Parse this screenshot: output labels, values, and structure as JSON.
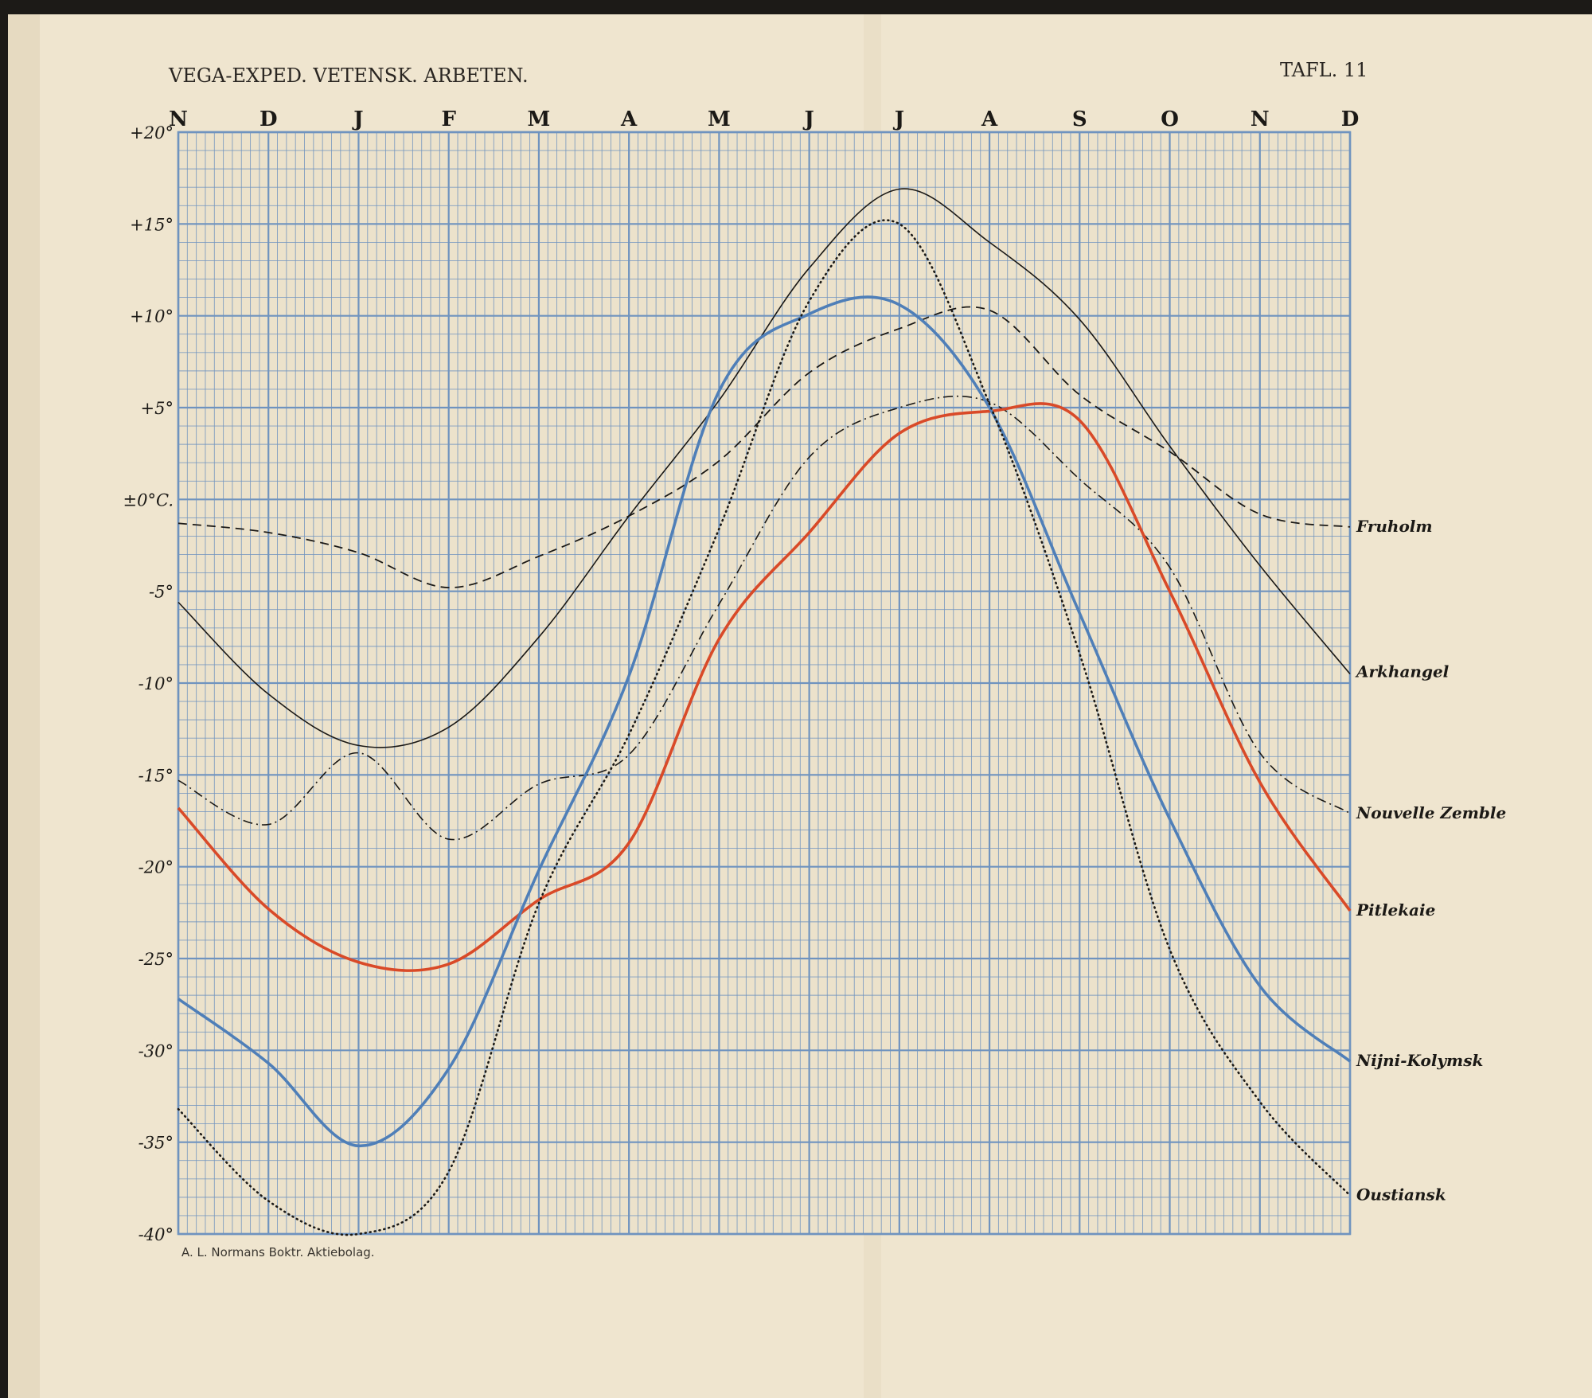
{
  "header": {
    "left_title": "VEGA-EXPED. VETENSK. ARBETEN.",
    "right_title": "TAFL. 11"
  },
  "footer": {
    "printer": "A. L. Normans Boktr. Aktiebolag."
  },
  "colors": {
    "paper": "#efe5cf",
    "grid": "#6f93bf",
    "ink": "#1b1916",
    "red": "#d94a28",
    "blue": "#4f7fb8"
  },
  "chart_data": {
    "type": "line",
    "title": "",
    "xlabel": "",
    "ylabel": "",
    "categories": [
      "N",
      "D",
      "J",
      "F",
      "M",
      "A",
      "M",
      "J",
      "J",
      "A",
      "S",
      "O",
      "N",
      "D"
    ],
    "y_tick_labels": [
      "+20°",
      "+15°",
      "+10°",
      "+5°",
      "±0°C.",
      "-5°",
      "-10°",
      "-15°",
      "-20°",
      "-25°",
      "-30°",
      "-35°",
      "-40°"
    ],
    "ylim": [
      -40,
      20
    ],
    "grid": true,
    "legend": "right-end labels",
    "series": [
      {
        "name": "Fruholm",
        "style": "dashed",
        "color": "#1b1916",
        "values": [
          -1.3,
          -1.8,
          -2.9,
          -4.8,
          -3.1,
          -0.9,
          2.1,
          6.9,
          9.3,
          10.3,
          5.7,
          2.6,
          -0.8,
          -1.5
        ]
      },
      {
        "name": "Arkhangel",
        "style": "solid-thin",
        "color": "#1b1916",
        "values": [
          -5.6,
          -10.6,
          -13.4,
          -12.4,
          -7.5,
          -0.9,
          5.4,
          12.6,
          16.9,
          14.0,
          9.8,
          2.9,
          -3.6,
          -9.5
        ]
      },
      {
        "name": "Nouvelle Zemble",
        "style": "dash-dot",
        "color": "#1b1916",
        "values": [
          -15.3,
          -17.7,
          -13.8,
          -18.5,
          -15.5,
          -13.9,
          -5.7,
          2.3,
          5.0,
          5.3,
          1.1,
          -3.7,
          -13.8,
          -17.1
        ]
      },
      {
        "name": "Pitlekaie",
        "style": "solid-thick",
        "color": "#d94a28",
        "values": [
          -16.8,
          -22.3,
          -25.2,
          -25.3,
          -21.8,
          -18.7,
          -7.6,
          -1.8,
          3.6,
          4.8,
          4.3,
          -5.0,
          -15.4,
          -22.4
        ]
      },
      {
        "name": "Nijni-Kolymsk",
        "style": "solid-thick",
        "color": "#4f7fb8",
        "values": [
          -27.2,
          -30.7,
          -35.2,
          -31.0,
          -20.2,
          -9.6,
          5.9,
          10.1,
          10.6,
          5.0,
          -6.2,
          -17.4,
          -26.5,
          -30.6
        ]
      },
      {
        "name": "Oustiansk",
        "style": "dotted",
        "color": "#1b1916",
        "values": [
          -33.2,
          -38.2,
          -40.0,
          -36.6,
          -22.0,
          -12.8,
          -1.6,
          10.8,
          15.0,
          5.2,
          -8.4,
          -24.5,
          -32.8,
          -37.9
        ]
      }
    ]
  }
}
